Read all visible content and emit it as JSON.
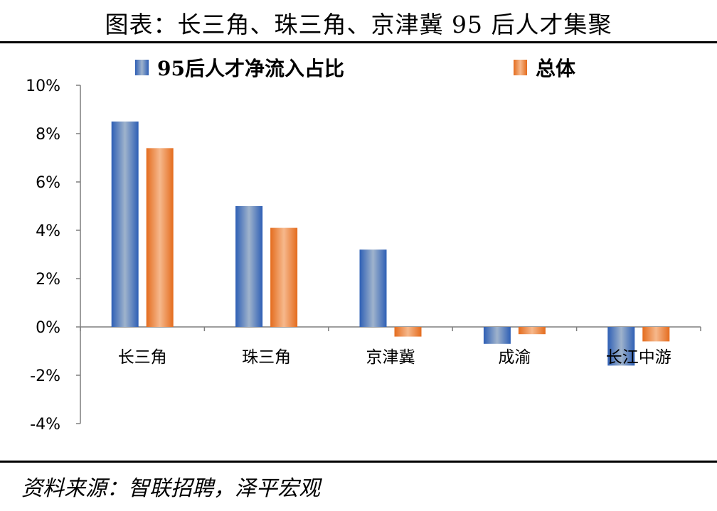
{
  "title": "图表：长三角、珠三角、京津冀 95 后人才集聚",
  "source": "资料来源：智联招聘，泽平宏观",
  "colors": {
    "series1": "#4472c4",
    "series2": "#ed7d31",
    "axis": "#7f7f7f"
  },
  "chart_data": {
    "type": "bar",
    "title": "",
    "xlabel": "",
    "ylabel": "",
    "ylim": [
      -0.04,
      0.1
    ],
    "yticks": [
      0.1,
      0.08,
      0.06,
      0.04,
      0.02,
      0.0,
      -0.02,
      -0.04
    ],
    "ytick_labels": [
      "10%",
      "8%",
      "6%",
      "4%",
      "2%",
      "0%",
      "-2%",
      "-4%"
    ],
    "categories": [
      "长三角",
      "珠三角",
      "京津冀",
      "成渝",
      "长江中游"
    ],
    "series": [
      {
        "name": "95后人才净流入占比",
        "values": [
          0.085,
          0.05,
          0.032,
          -0.007,
          -0.016
        ]
      },
      {
        "name": "总体",
        "values": [
          0.074,
          0.041,
          -0.004,
          -0.003,
          -0.006
        ]
      }
    ],
    "legend": "top",
    "grid": false
  }
}
